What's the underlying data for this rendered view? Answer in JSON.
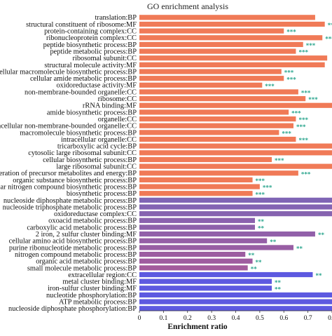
{
  "chart_data": {
    "type": "bar",
    "orientation": "horizontal",
    "title": "GO enrichment analysis",
    "xlabel": "Enrichment ratio",
    "xlim": [
      0,
      0.8
    ],
    "xticks": [
      "0",
      "0.1",
      "0.2",
      "0.3",
      "0.4",
      "0.5",
      "0.6",
      "0.7",
      "0.8"
    ],
    "categories": [
      "translation:BP",
      "structural constituent of ribosome:MF",
      "protein-containing complex:CC",
      "ribonucleoprotein complex:CC",
      "peptide biosynthetic process:BP",
      "peptide metabolic process:BP",
      "ribosomal subunit:CC",
      "structural molecule activity:MF",
      "cellular macromolecule biosynthetic process:BP",
      "cellular amide metabolic process:BP",
      "oxidoreductase activity:MF",
      "non-membrane-bounded organelle:CC",
      "ribosome:CC",
      "rRNA binding:MF",
      "amide biosynthetic process:BP",
      "organelle:CC",
      "intracellular non-membrane-bounded organelle:CC",
      "macromolecule biosynthetic process:BP",
      "intracellular organelle:CC",
      "tricarboxylic acid cycle:BP",
      "cytosolic large ribosomal subunit:CC",
      "cellular biosynthetic process:BP",
      "large ribosomal subunit:CC",
      "generation of precursor metabolites and energy:BP",
      "organic substance biosynthetic process:BP",
      "cellular nitrogen compound biosynthetic process:BP",
      "biosynthetic process:BP",
      "nucleoside diphosphate metabolic process:BP",
      "nucleoside triphosphate metabolic process:BP",
      "oxidoreductase complex:CC",
      "oxoacid metabolic process:BP",
      "carboxylic acid metabolic process:BP",
      "2 iron, 2 sulfur cluster binding:MF",
      "cellular amino acid biosynthetic process:BP",
      "purine ribonucleotide metabolic process:BP",
      "nitrogen compound metabolic process:BP",
      "organic acid metabolic process:BP",
      "small molecule metabolic process:BP",
      "extracellular region:CC",
      "metal cluster binding:MF",
      "iron-sulfur cluster binding:MF",
      "nucleotide phosphorylation:BP",
      "ATP metabolic process:BP",
      "nucleoside diphosphate phosphorylation:BP"
    ],
    "values": [
      0.73,
      0.77,
      0.6,
      0.76,
      0.68,
      0.65,
      0.78,
      0.77,
      0.59,
      0.6,
      0.51,
      0.66,
      0.69,
      0.8,
      0.62,
      0.65,
      0.64,
      0.58,
      0.65,
      0.8,
      0.8,
      0.55,
      0.8,
      0.66,
      0.47,
      0.5,
      0.47,
      0.8,
      0.8,
      0.8,
      0.48,
      0.48,
      0.73,
      0.53,
      0.64,
      0.44,
      0.47,
      0.45,
      0.72,
      0.55,
      0.55,
      0.8,
      0.8,
      0.8
    ],
    "significance": [
      "",
      "***",
      "***",
      "***",
      "***",
      "***",
      "",
      "",
      "***",
      "***",
      "***",
      "***",
      "***",
      "",
      "***",
      "***",
      "***",
      "***",
      "***",
      "",
      "",
      "***",
      "",
      "***",
      "***",
      "***",
      "***",
      "",
      "",
      "",
      "**",
      "**",
      "**",
      "**",
      "**",
      "**",
      "**",
      "**",
      "**",
      "**",
      "**",
      "",
      "",
      ""
    ],
    "colors": {
      "bp_mf_cc_group_1": "#f07a57",
      "group_2_start": "#7f65b5",
      "group_2_end": "#a35b9c",
      "group_3": "#5d59e0",
      "stars": "#2aa58d"
    },
    "grid": false
  }
}
